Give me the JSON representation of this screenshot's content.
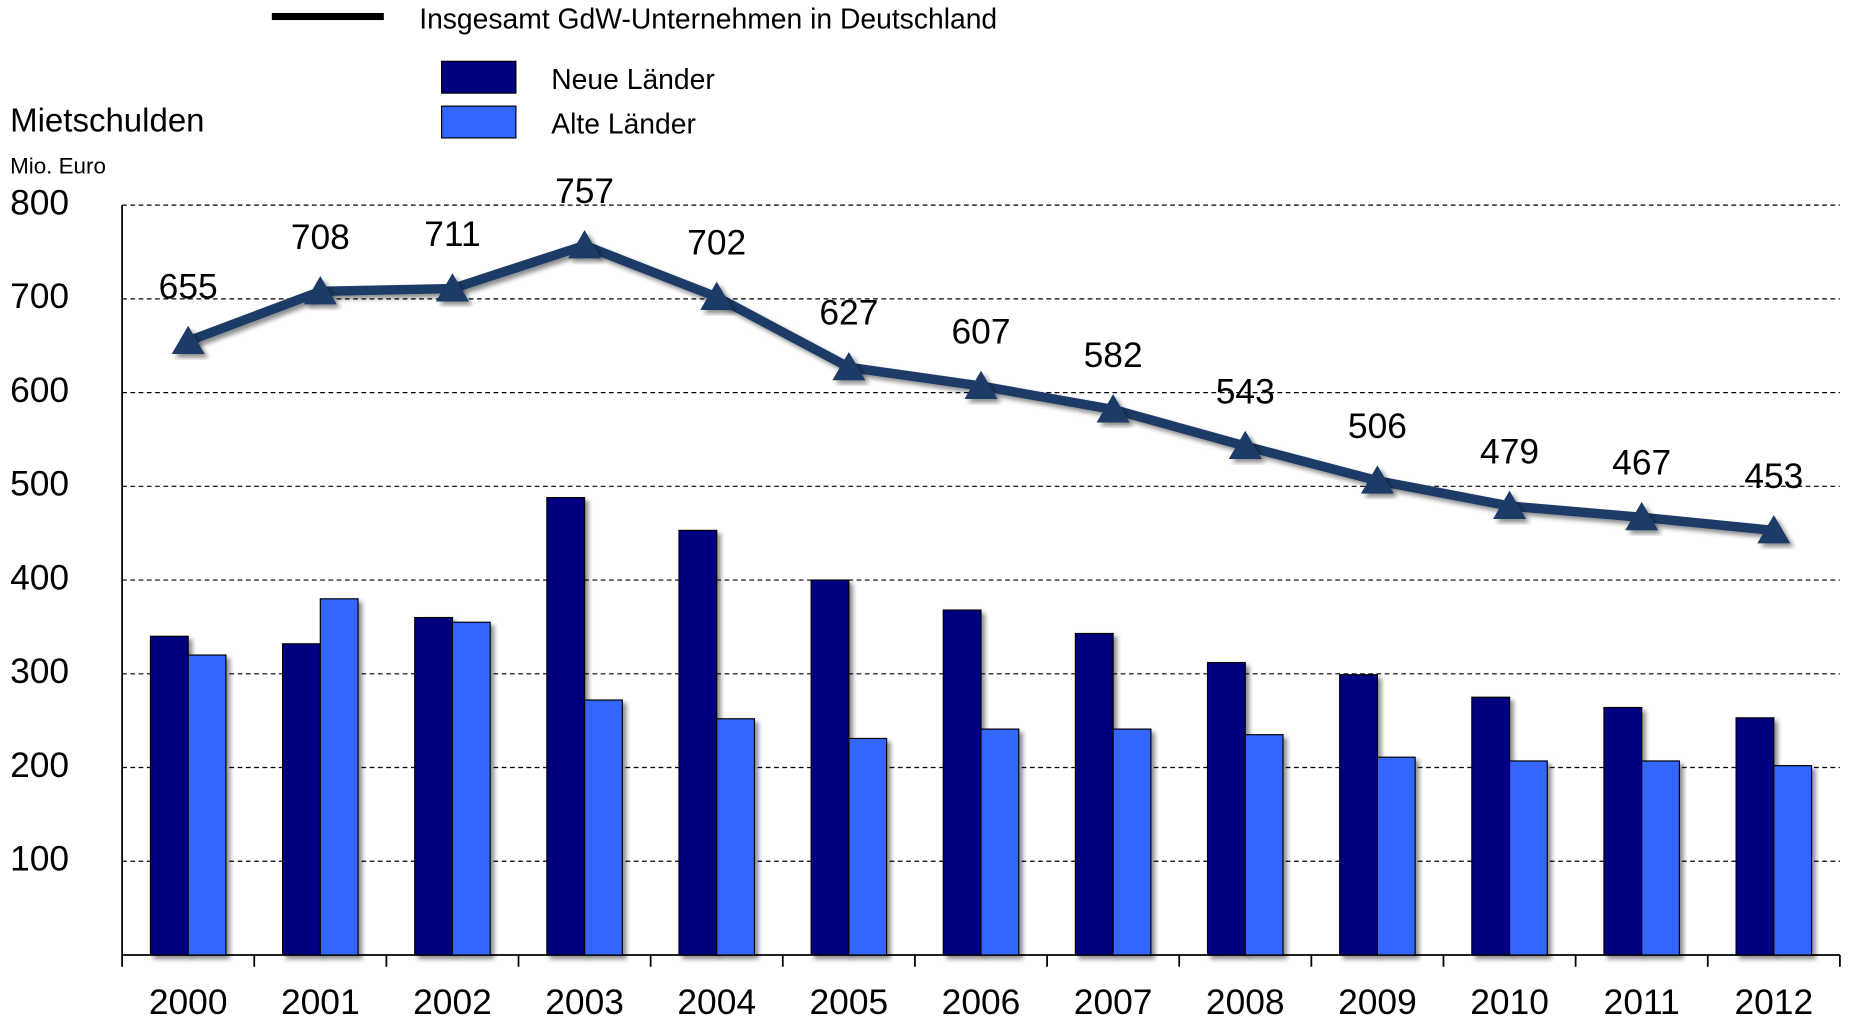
{
  "chart_data": {
    "type": "bar_line",
    "y_label": "Mietschulden",
    "y_unit": "Mio. Euro",
    "categories": [
      "2000",
      "2001",
      "2002",
      "2003",
      "2004",
      "2005",
      "2006",
      "2007",
      "2008",
      "2009",
      "2010",
      "2011",
      "2012"
    ],
    "series": [
      {
        "name": "Insgesamt GdW-Unternehmen in Deutschland",
        "type": "line",
        "color": "#1c3a66",
        "values": [
          655,
          708,
          711,
          757,
          702,
          627,
          607,
          582,
          543,
          506,
          479,
          467,
          453
        ]
      },
      {
        "name": "Neue Länder",
        "type": "bar",
        "color": "#000080",
        "values": [
          340,
          332,
          360,
          488,
          453,
          400,
          368,
          343,
          312,
          299,
          275,
          264,
          253
        ]
      },
      {
        "name": "Alte Länder",
        "type": "bar",
        "color": "#3366ff",
        "values": [
          320,
          380,
          355,
          272,
          252,
          231,
          241,
          241,
          235,
          211,
          207,
          207,
          202
        ]
      }
    ],
    "ylim": [
      0,
      800
    ],
    "yticks": [
      100,
      200,
      300,
      400,
      500,
      600,
      700,
      800
    ],
    "grid": true
  }
}
